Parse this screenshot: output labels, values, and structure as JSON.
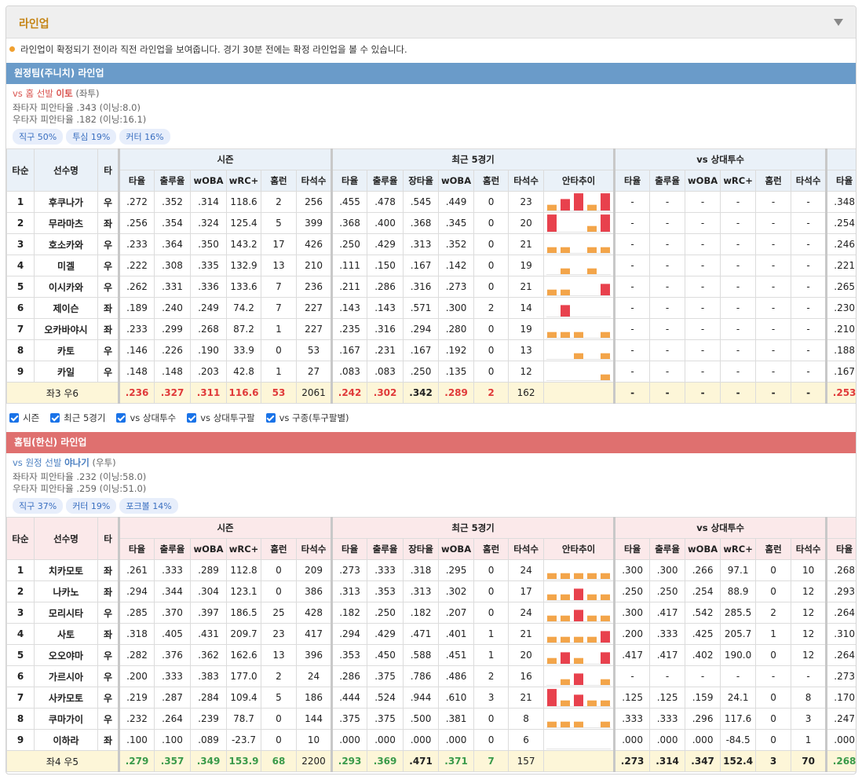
{
  "header": {
    "title": "라인업"
  },
  "notice": "라인업이 확정되기 전이라 직전 라인업을 보여줍니다. 경기 30분 전에는 확정 라인업을 볼 수 있습니다.",
  "columns": {
    "fixed": [
      "타순",
      "선수명",
      "타"
    ],
    "groups": [
      {
        "name": "시즌",
        "cols": [
          "타율",
          "출루율",
          "wOBA",
          "wRC+",
          "홈런",
          "타석수"
        ]
      },
      {
        "name": "최근 5경기",
        "cols": [
          "타율",
          "출루율",
          "장타율",
          "wOBA",
          "홈런",
          "타석수",
          "안타추이"
        ]
      },
      {
        "name": "vs 상대투수",
        "cols": [
          "타율",
          "출루율",
          "wOBA",
          "wRC+",
          "홈런",
          "타석수"
        ]
      },
      {
        "name": null,
        "cols": [
          "타율"
        ]
      }
    ]
  },
  "hit_colors": {
    "one": "#f3a54a",
    "multi": "#e8414d"
  },
  "checkboxes": [
    "시즌",
    "최근 5경기",
    "vs 상대투수",
    "vs 상대투구팔",
    "vs 구종(투구팔별)"
  ],
  "teams": [
    {
      "title": "원정팀(주니치) 라인업",
      "color": "#6a9bc9",
      "header_bg": "#eaf1f8",
      "accent": "#e03a3a",
      "pitcher_color": "#d9534f",
      "pitcher": [
        "vs 홈 선발",
        "이토",
        "(좌투)"
      ],
      "splits": [
        "좌타자 피안타율 .343 (이닝:8.0)",
        "우타자 피안타율 .182 (이닝:16.1)"
      ],
      "tags": [
        "직구 50%",
        "투심 19%",
        "커터 16%"
      ],
      "rows": [
        [
          "1",
          "후쿠나가",
          "우",
          ".272",
          ".352",
          ".314",
          "118.6",
          "2",
          "256",
          ".455",
          ".478",
          ".545",
          ".449",
          "0",
          "23",
          "-",
          "-",
          "-",
          "-",
          "-",
          "-",
          ".348"
        ],
        [
          "2",
          "무라마츠",
          "좌",
          ".256",
          ".354",
          ".324",
          "125.4",
          "5",
          "399",
          ".368",
          ".400",
          ".368",
          ".345",
          "0",
          "20",
          "-",
          "-",
          "-",
          "-",
          "-",
          "-",
          ".254"
        ],
        [
          "3",
          "호소카와",
          "우",
          ".233",
          ".364",
          ".350",
          "143.2",
          "17",
          "426",
          ".250",
          ".429",
          ".313",
          ".352",
          "0",
          "21",
          "-",
          "-",
          "-",
          "-",
          "-",
          "-",
          ".246"
        ],
        [
          "4",
          "미겔",
          "우",
          ".222",
          ".308",
          ".335",
          "132.9",
          "13",
          "210",
          ".111",
          ".150",
          ".167",
          ".142",
          "0",
          "19",
          "-",
          "-",
          "-",
          "-",
          "-",
          "-",
          ".221"
        ],
        [
          "5",
          "이시카와",
          "우",
          ".262",
          ".331",
          ".336",
          "133.6",
          "7",
          "236",
          ".211",
          ".286",
          ".316",
          ".273",
          "0",
          "21",
          "-",
          "-",
          "-",
          "-",
          "-",
          "-",
          ".265"
        ],
        [
          "6",
          "제이슨",
          "좌",
          ".189",
          ".240",
          ".249",
          "74.2",
          "7",
          "227",
          ".143",
          ".143",
          ".571",
          ".300",
          "2",
          "14",
          "-",
          "-",
          "-",
          "-",
          "-",
          "-",
          ".230"
        ],
        [
          "7",
          "오카바야시",
          "좌",
          ".233",
          ".299",
          ".268",
          "87.2",
          "1",
          "227",
          ".235",
          ".316",
          ".294",
          ".280",
          "0",
          "19",
          "-",
          "-",
          "-",
          "-",
          "-",
          "-",
          ".210"
        ],
        [
          "8",
          "카토",
          "우",
          ".146",
          ".226",
          ".190",
          "33.9",
          "0",
          "53",
          ".167",
          ".231",
          ".167",
          ".192",
          "0",
          "13",
          "-",
          "-",
          "-",
          "-",
          "-",
          "-",
          ".188"
        ],
        [
          "9",
          "카일",
          "우",
          ".148",
          ".148",
          ".203",
          "42.8",
          "1",
          "27",
          ".083",
          ".083",
          ".250",
          ".135",
          "0",
          "12",
          "-",
          "-",
          "-",
          "-",
          "-",
          "-",
          ".167"
        ]
      ],
      "hits": [
        [
          1,
          2,
          3,
          1,
          3
        ],
        [
          3,
          0,
          0,
          1,
          3
        ],
        [
          1,
          1,
          0,
          1,
          1
        ],
        [
          0,
          1,
          0,
          1,
          0
        ],
        [
          1,
          1,
          0,
          0,
          2
        ],
        [
          0,
          2,
          0,
          0,
          0
        ],
        [
          1,
          1,
          1,
          0,
          1
        ],
        [
          0,
          0,
          1,
          0,
          1
        ],
        [
          0,
          0,
          0,
          0,
          1
        ]
      ],
      "total": [
        "좌3 우6",
        ".236",
        ".327",
        ".311",
        "116.6",
        "53",
        "2061",
        ".242",
        ".302",
        ".342",
        ".289",
        "2",
        "162",
        "-",
        "-",
        "-",
        "-",
        "-",
        "-",
        ".253"
      ]
    },
    {
      "title": "홈팀(한신) 라인업",
      "color": "#df706f",
      "header_bg": "#fbe9ea",
      "accent": "#3a9a4a",
      "pitcher_color": "#4a7fc1",
      "pitcher": [
        "vs 원정 선발",
        "야나기",
        "(우투)"
      ],
      "splits": [
        "좌타자 피안타율 .232 (이닝:58.0)",
        "우타자 피안타율 .259 (이닝:51.0)"
      ],
      "tags": [
        "직구 37%",
        "커터 19%",
        "포크볼 14%"
      ],
      "rows": [
        [
          "1",
          "치카모토",
          "좌",
          ".261",
          ".333",
          ".289",
          "112.8",
          "0",
          "209",
          ".273",
          ".333",
          ".318",
          ".295",
          "0",
          "24",
          ".300",
          ".300",
          ".266",
          "97.1",
          "0",
          "10",
          ".268"
        ],
        [
          "2",
          "나카노",
          "좌",
          ".294",
          ".344",
          ".304",
          "123.1",
          "0",
          "386",
          ".313",
          ".353",
          ".313",
          ".302",
          "0",
          "17",
          ".250",
          ".250",
          ".254",
          "88.9",
          "0",
          "12",
          ".293"
        ],
        [
          "3",
          "모리시타",
          "우",
          ".285",
          ".370",
          ".397",
          "186.5",
          "25",
          "428",
          ".182",
          ".250",
          ".182",
          ".207",
          "0",
          "24",
          ".300",
          ".417",
          ".542",
          "285.5",
          "2",
          "12",
          ".264"
        ],
        [
          "4",
          "사토",
          "좌",
          ".318",
          ".405",
          ".431",
          "209.7",
          "23",
          "417",
          ".294",
          ".429",
          ".471",
          ".401",
          "1",
          "21",
          ".200",
          ".333",
          ".425",
          "205.7",
          "1",
          "12",
          ".310"
        ],
        [
          "5",
          "오오야마",
          "우",
          ".282",
          ".376",
          ".362",
          "162.6",
          "13",
          "396",
          ".353",
          ".450",
          ".588",
          ".451",
          "1",
          "20",
          ".417",
          ".417",
          ".402",
          "190.0",
          "0",
          "12",
          ".264"
        ],
        [
          "6",
          "가르시아",
          "우",
          ".200",
          ".333",
          ".383",
          "177.0",
          "2",
          "24",
          ".286",
          ".375",
          ".786",
          ".486",
          "2",
          "16",
          "-",
          "-",
          "-",
          "-",
          "-",
          "-",
          ".273"
        ],
        [
          "7",
          "사카모토",
          "우",
          ".219",
          ".287",
          ".284",
          "109.4",
          "5",
          "186",
          ".444",
          ".524",
          ".944",
          ".610",
          "3",
          "21",
          ".125",
          ".125",
          ".159",
          "24.1",
          "0",
          "8",
          ".170"
        ],
        [
          "8",
          "쿠마가이",
          "우",
          ".232",
          ".264",
          ".239",
          "78.7",
          "0",
          "144",
          ".375",
          ".375",
          ".500",
          ".381",
          "0",
          "8",
          ".333",
          ".333",
          ".296",
          "117.6",
          "0",
          "3",
          ".247"
        ],
        [
          "9",
          "이하라",
          "좌",
          ".100",
          ".100",
          ".089",
          "-23.7",
          "0",
          "10",
          ".000",
          ".000",
          ".000",
          ".000",
          "0",
          "6",
          ".000",
          ".000",
          ".000",
          "-84.5",
          "0",
          "1",
          ".000"
        ]
      ],
      "hits": [
        [
          1,
          1,
          1,
          1,
          1
        ],
        [
          1,
          1,
          2,
          1,
          1
        ],
        [
          1,
          1,
          2,
          1,
          1
        ],
        [
          1,
          1,
          1,
          1,
          2
        ],
        [
          1,
          2,
          1,
          0,
          2
        ],
        [
          0,
          1,
          2,
          0,
          1
        ],
        [
          3,
          1,
          2,
          1,
          1
        ],
        [
          1,
          1,
          1,
          0,
          1
        ],
        [
          0,
          0,
          0,
          0,
          0
        ]
      ],
      "total": [
        "좌4 우5",
        ".279",
        ".357",
        ".349",
        "153.9",
        "68",
        "2200",
        ".293",
        ".369",
        ".471",
        ".371",
        "7",
        "157",
        ".273",
        ".314",
        ".347",
        "152.4",
        "3",
        "70",
        ".268"
      ]
    }
  ]
}
